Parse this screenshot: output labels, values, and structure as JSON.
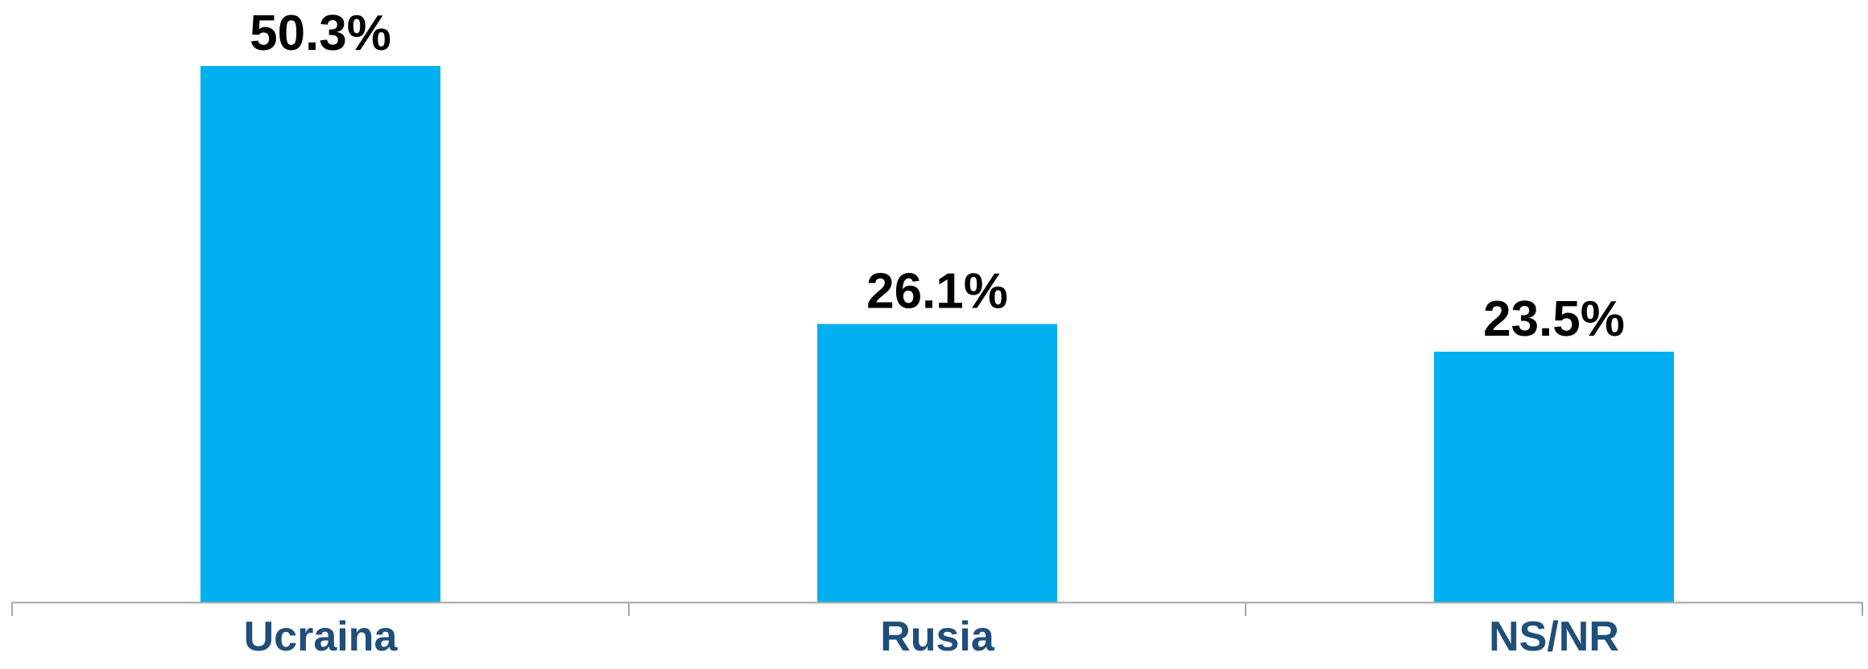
{
  "chart_data": {
    "type": "bar",
    "categories": [
      "Ucraina",
      "Rusia",
      "NS/NR"
    ],
    "values": [
      50.3,
      26.1,
      23.5
    ],
    "data_labels": [
      "50.3%",
      "26.1%",
      "23.5%"
    ],
    "title": "",
    "xlabel": "",
    "ylabel": "",
    "ylim": [
      0,
      50.3
    ],
    "grid": false,
    "legend": "none",
    "colors": {
      "bar": "#00B0F0",
      "axis": "#A6A6A6",
      "category_text": "#1F4E79",
      "value_text": "#000000"
    }
  }
}
